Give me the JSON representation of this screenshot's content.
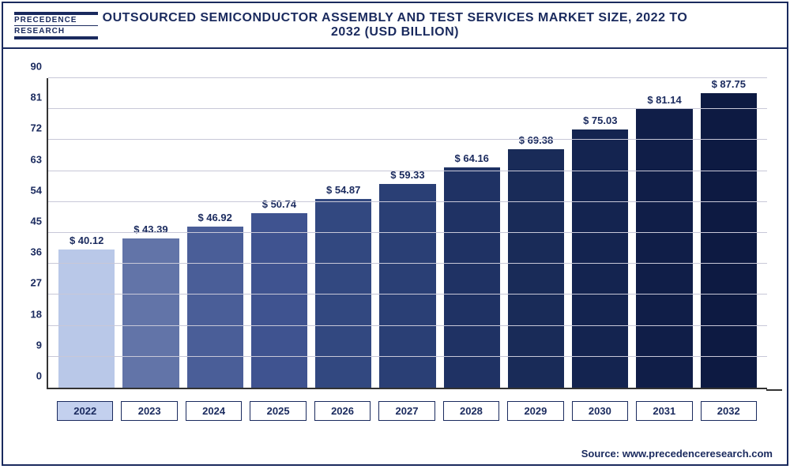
{
  "header": {
    "logo_line1": "PRECEDENCE",
    "logo_line2": "RESEARCH",
    "title": "OUTSOURCED SEMICONDUCTOR ASSEMBLY AND TEST SERVICES MARKET SIZE, 2022 TO 2032 (USD BILLION)"
  },
  "chart": {
    "type": "bar",
    "ymin": 0,
    "ymax": 90,
    "ytick_step": 9,
    "yticks": [
      0,
      9,
      18,
      27,
      36,
      45,
      54,
      63,
      72,
      81,
      90
    ],
    "grid_color": "#c8c8d8",
    "axis_color": "#333333",
    "label_color": "#1a2a5e",
    "label_fontsize": 13,
    "value_prefix": "$ ",
    "background_color": "#ffffff",
    "bars": [
      {
        "year": "2022",
        "value": 40.12,
        "label": "$ 40.12",
        "color": "#b9c8e8",
        "highlight": true
      },
      {
        "year": "2023",
        "value": 43.39,
        "label": "$ 43.39",
        "color": "#6274a8",
        "highlight": false
      },
      {
        "year": "2024",
        "value": 46.92,
        "label": "$ 46.92",
        "color": "#4a5e98",
        "highlight": false
      },
      {
        "year": "2025",
        "value": 50.74,
        "label": "$ 50.74",
        "color": "#3f5390",
        "highlight": false
      },
      {
        "year": "2026",
        "value": 54.87,
        "label": "$ 54.87",
        "color": "#324880",
        "highlight": false
      },
      {
        "year": "2027",
        "value": 59.33,
        "label": "$ 59.33",
        "color": "#2a3f75",
        "highlight": false
      },
      {
        "year": "2028",
        "value": 64.16,
        "label": "$ 64.16",
        "color": "#1f3264",
        "highlight": false
      },
      {
        "year": "2029",
        "value": 69.38,
        "label": "$ 69.38",
        "color": "#192b58",
        "highlight": false
      },
      {
        "year": "2030",
        "value": 75.03,
        "label": "$ 75.03",
        "color": "#142450",
        "highlight": false
      },
      {
        "year": "2031",
        "value": 81.14,
        "label": "$ 81.14",
        "color": "#101e48",
        "highlight": false
      },
      {
        "year": "2032",
        "value": 87.75,
        "label": "$ 87.75",
        "color": "#0d1a42",
        "highlight": false
      }
    ]
  },
  "footer": {
    "source": "Source: www.precedenceresearch.com"
  }
}
